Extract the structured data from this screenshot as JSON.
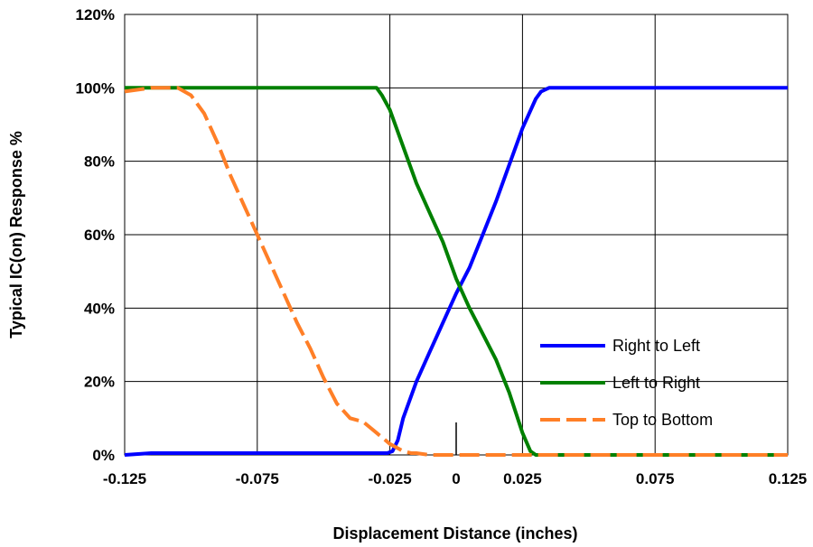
{
  "chart_data": {
    "type": "line",
    "xlabel": "Displacement Distance (inches)",
    "ylabel": "Typical IC(on) Response %",
    "xlim": [
      -0.125,
      0.125
    ],
    "ylim": [
      0,
      120
    ],
    "grid": true,
    "legend_position": "bottom-right",
    "x_ticks": [
      -0.125,
      -0.075,
      -0.025,
      0.025,
      0.075,
      0.125
    ],
    "x_tick_labels": [
      "-0.125",
      "-0.075",
      "-0.025",
      "0.025",
      "0.075",
      "0.125"
    ],
    "y_ticks": [
      0,
      20,
      40,
      60,
      80,
      100,
      120
    ],
    "y_tick_labels": [
      "0%",
      "20%",
      "40%",
      "60%",
      "80%",
      "100%",
      "120%"
    ],
    "zero_marker": {
      "x": 0,
      "label": "0"
    },
    "series": [
      {
        "name": "Right to Left",
        "color": "#0000ff",
        "dash": "solid",
        "x": [
          -0.125,
          -0.115,
          -0.1,
          -0.08,
          -0.06,
          -0.04,
          -0.026,
          -0.024,
          -0.022,
          -0.02,
          -0.015,
          -0.01,
          -0.005,
          0.0,
          0.005,
          0.01,
          0.015,
          0.02,
          0.025,
          0.03,
          0.032,
          0.035,
          0.04,
          0.06,
          0.08,
          0.1,
          0.125
        ],
        "values": [
          0,
          0.5,
          0.5,
          0.5,
          0.5,
          0.5,
          0.5,
          1,
          4,
          10,
          20,
          28,
          36,
          44,
          51,
          60,
          69,
          79,
          89,
          97,
          99,
          100,
          100,
          100,
          100,
          100,
          100
        ]
      },
      {
        "name": "Left to Right",
        "color": "#008000",
        "dash": "solid",
        "x": [
          -0.125,
          -0.1,
          -0.08,
          -0.06,
          -0.04,
          -0.03,
          -0.028,
          -0.025,
          -0.02,
          -0.015,
          -0.01,
          -0.005,
          0.0,
          0.005,
          0.01,
          0.015,
          0.02,
          0.025,
          0.028,
          0.03,
          0.05,
          0.08,
          0.1,
          0.125
        ],
        "values": [
          100,
          100,
          100,
          100,
          100,
          100,
          98,
          94,
          84,
          74,
          66,
          58,
          48,
          40,
          33,
          26,
          17,
          6,
          1,
          0,
          0,
          0,
          0,
          0
        ]
      },
      {
        "name": "Top to Bottom",
        "color": "#ff7f27",
        "dash": "dashed",
        "x": [
          -0.125,
          -0.115,
          -0.105,
          -0.1,
          -0.095,
          -0.09,
          -0.085,
          -0.08,
          -0.075,
          -0.07,
          -0.065,
          -0.06,
          -0.055,
          -0.05,
          -0.045,
          -0.04,
          -0.035,
          -0.03,
          -0.025,
          -0.02,
          -0.017,
          -0.015,
          -0.01,
          0.0,
          0.05,
          0.1,
          0.125
        ],
        "values": [
          99,
          100,
          100,
          98,
          93,
          85,
          76,
          68,
          60,
          52,
          44,
          36,
          29,
          21,
          14,
          10,
          9,
          6,
          3,
          1,
          0.5,
          0.5,
          0,
          0,
          0,
          0,
          0
        ]
      }
    ]
  }
}
